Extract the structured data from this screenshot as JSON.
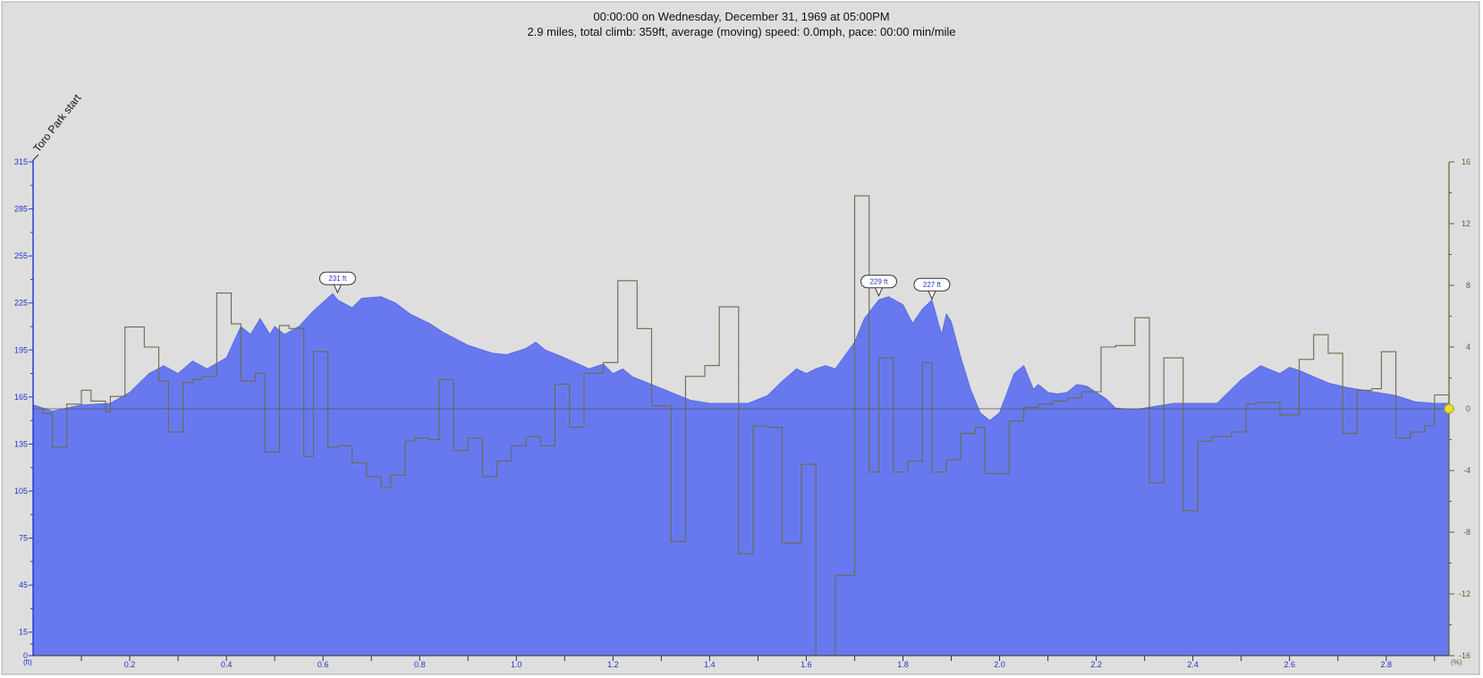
{
  "chart_data": {
    "type": "area",
    "title": "00:00:00 on Wednesday, December 31, 1969 at 05:00PM",
    "subtitle": "2.9 miles, total climb: 359ft, average (moving) speed: 0.0mph, pace: 00:00 min/mile",
    "left_axis_unit": "(ft)",
    "right_axis_unit": "(%)",
    "start_label": "Toro Park start",
    "xlim": [
      0,
      2.93
    ],
    "ylim_left": [
      0,
      315
    ],
    "ylim_right": [
      -16,
      16
    ],
    "x_ticks": [
      0.2,
      0.4,
      0.6,
      0.8,
      1.0,
      1.2,
      1.4,
      1.6,
      1.8,
      2.0,
      2.2,
      2.4,
      2.6,
      2.8
    ],
    "x_tick_labels": [
      "0.2",
      "0.4",
      "0.6",
      "0.8",
      "1.0",
      "1.2",
      "1.4",
      "1.6",
      "1.8",
      "2.0",
      "2.2",
      "2.4",
      "2.6",
      "2.8"
    ],
    "y_left_ticks": [
      0,
      15,
      45,
      75,
      105,
      135,
      165,
      195,
      225,
      255,
      285,
      315
    ],
    "y_right_ticks": [
      16,
      12,
      8,
      4,
      0,
      -4,
      -8,
      -12,
      -16
    ],
    "y_right_tick_labels": [
      "16",
      "12",
      "8",
      "4",
      "0",
      "-4",
      "-8",
      "-12",
      "-16"
    ],
    "series": [
      {
        "name": "elevation",
        "color": "#6879ef",
        "x": [
          0,
          0.04,
          0.1,
          0.16,
          0.2,
          0.24,
          0.27,
          0.3,
          0.33,
          0.36,
          0.4,
          0.43,
          0.45,
          0.47,
          0.49,
          0.5,
          0.52,
          0.55,
          0.58,
          0.62,
          0.63,
          0.66,
          0.68,
          0.72,
          0.75,
          0.78,
          0.82,
          0.85,
          0.9,
          0.95,
          0.98,
          1.02,
          1.04,
          1.06,
          1.1,
          1.15,
          1.18,
          1.2,
          1.22,
          1.24,
          1.28,
          1.32,
          1.36,
          1.4,
          1.44,
          1.48,
          1.52,
          1.55,
          1.58,
          1.6,
          1.62,
          1.64,
          1.66,
          1.7,
          1.72,
          1.75,
          1.77,
          1.8,
          1.82,
          1.84,
          1.86,
          1.88,
          1.89,
          1.9,
          1.92,
          1.94,
          1.96,
          1.98,
          2.0,
          2.03,
          2.05,
          2.07,
          2.08,
          2.1,
          2.12,
          2.14,
          2.16,
          2.18,
          2.19,
          2.22,
          2.24,
          2.28,
          2.32,
          2.36,
          2.4,
          2.45,
          2.5,
          2.54,
          2.58,
          2.6,
          2.62,
          2.65,
          2.68,
          2.72,
          2.78,
          2.82,
          2.86,
          2.9,
          2.93
        ],
        "values": [
          160,
          156,
          160,
          161,
          168,
          180,
          185,
          180,
          188,
          183,
          190,
          210,
          205,
          215,
          205,
          210,
          205,
          210,
          220,
          231,
          227,
          222,
          228,
          229,
          225,
          218,
          212,
          206,
          198,
          193,
          192,
          196,
          200,
          195,
          190,
          183,
          186,
          180,
          183,
          178,
          173,
          168,
          163,
          161,
          161,
          161,
          166,
          175,
          183,
          180,
          183,
          185,
          183,
          200,
          215,
          227,
          229,
          224,
          212,
          221,
          227,
          205,
          218,
          213,
          190,
          170,
          155,
          150,
          155,
          180,
          185,
          170,
          173,
          168,
          167,
          168,
          173,
          172,
          170,
          164,
          158,
          157,
          159,
          161,
          161,
          161,
          176,
          185,
          180,
          184,
          182,
          178,
          174,
          171,
          168,
          166,
          162,
          161,
          161
        ]
      },
      {
        "name": "grade",
        "color": "#6b6b4e",
        "x": [
          0,
          0.02,
          0.04,
          0.07,
          0.1,
          0.12,
          0.15,
          0.16,
          0.19,
          0.23,
          0.26,
          0.28,
          0.31,
          0.33,
          0.35,
          0.38,
          0.41,
          0.43,
          0.46,
          0.48,
          0.51,
          0.53,
          0.56,
          0.58,
          0.61,
          0.63,
          0.66,
          0.69,
          0.72,
          0.74,
          0.77,
          0.79,
          0.82,
          0.84,
          0.87,
          0.9,
          0.93,
          0.96,
          0.99,
          1.02,
          1.05,
          1.08,
          1.11,
          1.14,
          1.18,
          1.21,
          1.25,
          1.28,
          1.32,
          1.35,
          1.39,
          1.42,
          1.46,
          1.49,
          1.52,
          1.55,
          1.59,
          1.62,
          1.66,
          1.7,
          1.73,
          1.75,
          1.78,
          1.81,
          1.84,
          1.86,
          1.89,
          1.92,
          1.95,
          1.97,
          2.0,
          2.02,
          2.05,
          2.08,
          2.11,
          2.14,
          2.17,
          2.21,
          2.24,
          2.28,
          2.31,
          2.34,
          2.38,
          2.41,
          2.44,
          2.48,
          2.51,
          2.53,
          2.58,
          2.62,
          2.65,
          2.68,
          2.71,
          2.74,
          2.77,
          2.79,
          2.82,
          2.85,
          2.88,
          2.9,
          2.93
        ],
        "values": [
          0,
          -0.3,
          -2.5,
          0.3,
          1.2,
          0.5,
          -0.2,
          0.8,
          5.3,
          4,
          1.8,
          -1.5,
          1.7,
          1.9,
          2.1,
          7.5,
          5.5,
          1.8,
          2.3,
          -2.8,
          5.4,
          5.2,
          -3.1,
          3.7,
          -2.5,
          -2.4,
          -3.5,
          -4.4,
          -5.1,
          -4.3,
          -2.1,
          -1.9,
          -2,
          1.9,
          -2.7,
          -1.9,
          -4.4,
          -3.4,
          -2.4,
          -1.8,
          -2.4,
          1.6,
          -1.2,
          2.3,
          3,
          8.3,
          5.2,
          0.2,
          -8.6,
          2.1,
          2.8,
          6.6,
          -9.4,
          -1.1,
          -1.2,
          -8.7,
          -3.6,
          -16,
          -10.8,
          13.8,
          -4.1,
          3.3,
          -4.1,
          -3.4,
          3,
          -4.1,
          -3.3,
          -1.6,
          -1.2,
          -4.2,
          -4.2,
          -0.8,
          0.1,
          0.3,
          0.5,
          0.7,
          1.1,
          4,
          4.1,
          5.9,
          -4.8,
          3.3,
          -6.6,
          -2.1,
          -1.8,
          -1.5,
          0.3,
          0.4,
          -0.4,
          3.2,
          4.8,
          3.6,
          -1.6,
          1.2,
          1.3,
          3.7,
          -1.9,
          -1.5,
          -1.1,
          0.9,
          0.2
        ]
      }
    ],
    "annotations": [
      {
        "x": 0.63,
        "y": 231,
        "text": "231 ft"
      },
      {
        "x": 1.75,
        "y": 229,
        "text": "229 ft"
      },
      {
        "x": 1.86,
        "y": 227,
        "text": "227 ft"
      }
    ],
    "end_marker_color": "#e8e030"
  }
}
